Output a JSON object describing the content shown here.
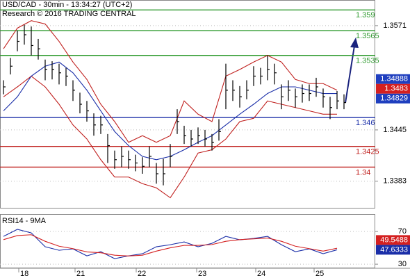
{
  "chart_data": [
    {
      "type": "ohlc",
      "title": "USD/CAD - 30min - 13:34:27 (UTC+2)",
      "subtitle": "Research © 2016 TRADING CENTRAL",
      "xlim": [
        -0.5,
        53.5
      ],
      "ylim": [
        1.335,
        1.3602
      ],
      "yticks": [
        1.3571,
        1.3445,
        1.3383
      ],
      "grid": true,
      "bar_color": "#000000",
      "high": [
        1.3505,
        1.3532,
        1.3565,
        1.3572,
        1.357,
        1.3555,
        1.353,
        1.3528,
        1.3525,
        1.352,
        1.3505,
        1.349,
        1.348,
        1.3465,
        1.3462,
        1.344,
        1.342,
        1.3425,
        1.342,
        1.3415,
        1.3412,
        1.3425,
        1.3405,
        1.341,
        1.3428,
        1.347,
        1.345,
        1.3445,
        1.3448,
        1.3445,
        1.344,
        1.3458,
        1.3525,
        1.3505,
        1.3498,
        1.3505,
        1.3522,
        1.352,
        1.3535,
        1.3525,
        1.35,
        1.3505,
        1.3495,
        1.35,
        1.35,
        1.3508,
        1.3495,
        1.3485,
        1.3492,
        1.3488
      ],
      "low": [
        1.3488,
        1.3512,
        1.354,
        1.3548,
        1.3535,
        1.353,
        1.3505,
        1.3506,
        1.35,
        1.3498,
        1.348,
        1.3465,
        1.3455,
        1.3438,
        1.344,
        1.3405,
        1.3398,
        1.34,
        1.3398,
        1.3395,
        1.3392,
        1.34,
        1.338,
        1.3378,
        1.34,
        1.344,
        1.3428,
        1.3425,
        1.3428,
        1.3425,
        1.342,
        1.3432,
        1.347,
        1.348,
        1.3472,
        1.3482,
        1.3498,
        1.35,
        1.3505,
        1.35,
        1.347,
        1.348,
        1.3472,
        1.3478,
        1.348,
        1.3485,
        1.3472,
        1.3458,
        1.347,
        1.347
      ],
      "close": [
        1.3497,
        1.3522,
        1.3552,
        1.356,
        1.3547,
        1.3543,
        1.3518,
        1.3518,
        1.3514,
        1.351,
        1.3493,
        1.3476,
        1.3468,
        1.3451,
        1.3451,
        1.3426,
        1.3409,
        1.3413,
        1.3409,
        1.3405,
        1.3401,
        1.3413,
        1.3392,
        1.3392,
        1.3413,
        1.3455,
        1.3438,
        1.3434,
        1.3438,
        1.3434,
        1.343,
        1.3443,
        1.3493,
        1.3493,
        1.3485,
        1.3493,
        1.351,
        1.351,
        1.3518,
        1.3514,
        1.3485,
        1.3493,
        1.3485,
        1.3489,
        1.3489,
        1.3497,
        1.3485,
        1.3472,
        1.348,
        1.3478
      ],
      "overlays": {
        "x": [
          0,
          2,
          4,
          6,
          8,
          10,
          12,
          14,
          16,
          18,
          20,
          22,
          24,
          26,
          28,
          30,
          32,
          34,
          36,
          38,
          40,
          42,
          44,
          46,
          48
        ],
        "upper": [
          1.3543,
          1.3568,
          1.3577,
          1.3573,
          1.3552,
          1.3527,
          1.3506,
          1.3476,
          1.3455,
          1.343,
          1.3438,
          1.343,
          1.3438,
          1.348,
          1.3464,
          1.3455,
          1.351,
          1.3518,
          1.3527,
          1.3535,
          1.3527,
          1.3506,
          1.3501,
          1.3501,
          1.3493
        ],
        "lower": [
          1.3485,
          1.3497,
          1.351,
          1.3497,
          1.3476,
          1.3451,
          1.3434,
          1.3409,
          1.3388,
          1.3388,
          1.338,
          1.3375,
          1.3363,
          1.3388,
          1.3417,
          1.3421,
          1.3434,
          1.3455,
          1.3459,
          1.348,
          1.3476,
          1.3472,
          1.3468,
          1.3464,
          1.3464
        ],
        "ma": [
          1.3468,
          1.3485,
          1.351,
          1.3522,
          1.3527,
          1.3514,
          1.3493,
          1.3468,
          1.3443,
          1.3426,
          1.3413,
          1.3409,
          1.3413,
          1.3421,
          1.343,
          1.3438,
          1.3451,
          1.3464,
          1.3476,
          1.3489,
          1.3497,
          1.3497,
          1.3493,
          1.3489,
          1.3489
        ],
        "band_color": "#c0201e",
        "ma_color": "#1a2ea8"
      },
      "levels": [
        {
          "value": 1.359,
          "color": "#2e9a2e"
        },
        {
          "value": 1.3565,
          "color": "#2e9a2e"
        },
        {
          "value": 1.3535,
          "color": "#2e9a2e"
        },
        {
          "value": 1.346,
          "color": "#1a2ea8"
        },
        {
          "value": 1.3425,
          "color": "#c0201e"
        },
        {
          "value": 1.34,
          "color": "#c0201e"
        }
      ],
      "price_tags": [
        {
          "value": 1.34888,
          "color": "#1f3fbf"
        },
        {
          "value": 1.3483,
          "color": "#d42020"
        },
        {
          "value": 1.34829,
          "color": "#1f3fbf"
        }
      ]
    },
    {
      "type": "line",
      "title": "RSI14 - 9MA",
      "xlim": [
        -0.5,
        53.5
      ],
      "ylim": [
        25,
        91.3
      ],
      "yticks": [
        70,
        30
      ],
      "grid": true,
      "x": [
        0,
        2,
        4,
        6,
        8,
        10,
        12,
        14,
        16,
        18,
        20,
        22,
        24,
        26,
        28,
        30,
        32,
        34,
        36,
        38,
        40,
        42,
        44,
        46,
        48
      ],
      "series": [
        {
          "color": "#1a2ea8",
          "values": [
            64.0,
            72.6,
            68.3,
            51.3,
            47.0,
            48.7,
            40.2,
            45.3,
            36.8,
            40.2,
            42.8,
            51.3,
            53.8,
            57.2,
            51.3,
            55.5,
            64.0,
            59.8,
            61.5,
            64.0,
            53.8,
            45.3,
            48.7,
            42.8,
            47.6
          ]
        },
        {
          "color": "#d42020",
          "values": [
            60,
            65,
            66,
            58,
            52,
            49,
            45,
            44,
            41,
            40,
            41,
            46,
            50,
            53,
            53,
            54,
            58,
            60,
            61,
            62,
            58,
            52,
            49,
            46,
            49.5
          ]
        }
      ],
      "xticks": [
        {
          "value": 2.2,
          "label": "18"
        },
        {
          "value": 10.3,
          "label": "21"
        },
        {
          "value": 19.1,
          "label": "22"
        },
        {
          "value": 27.8,
          "label": "23"
        },
        {
          "value": 36.3,
          "label": "24"
        },
        {
          "value": 44.7,
          "label": "25"
        }
      ],
      "value_tags": [
        {
          "value": 49.5488,
          "color": "#d42020"
        },
        {
          "value": 47.6333,
          "color": "#1a2ea8"
        }
      ]
    }
  ]
}
